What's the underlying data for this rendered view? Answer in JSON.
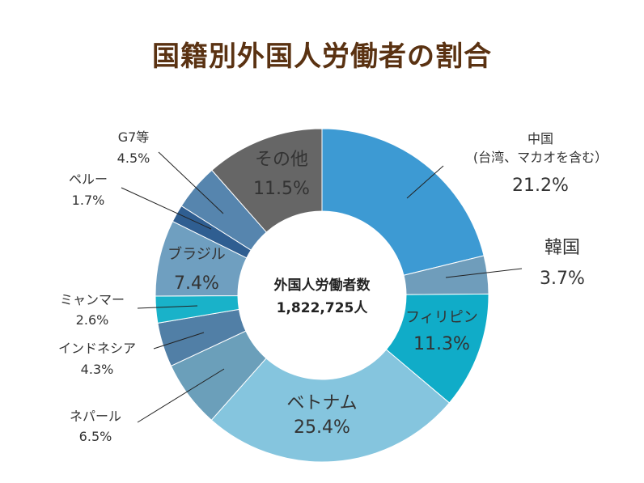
{
  "chart_data": {
    "type": "pie",
    "title": "国籍別外国人労働者の割合",
    "center_label": "外国人労働者数",
    "center_value": "1,822,725人",
    "slices": [
      {
        "name": "中国\n(台湾、マカオを含む）",
        "value": 21.2,
        "value_label": "21.2%",
        "color": "#3d9ad3"
      },
      {
        "name": "韓国",
        "value": 3.7,
        "value_label": "3.7%",
        "color": "#6f9dbb"
      },
      {
        "name": "フィリピン",
        "value": 11.3,
        "value_label": "11.3%",
        "color": "#10acc8"
      },
      {
        "name": "ベトナム",
        "value": 25.4,
        "value_label": "25.4%",
        "color": "#85c5de"
      },
      {
        "name": "ネパール",
        "value": 6.5,
        "value_label": "6.5%",
        "color": "#6b9fba"
      },
      {
        "name": "インドネシア",
        "value": 4.3,
        "value_label": "4.3%",
        "color": "#517fa6"
      },
      {
        "name": "ミャンマー",
        "value": 2.6,
        "value_label": "2.6%",
        "color": "#19b2c9"
      },
      {
        "name": "ブラジル",
        "value": 7.4,
        "value_label": "7.4%",
        "color": "#6f9fc0"
      },
      {
        "name": "ペルー",
        "value": 1.7,
        "value_label": "1.7%",
        "color": "#2f5e91"
      },
      {
        "name": "G7等",
        "value": 4.5,
        "value_label": "4.5%",
        "color": "#5685ae"
      },
      {
        "name": "その他",
        "value": 11.5,
        "value_label": "11.5%",
        "color": "#666666"
      }
    ]
  }
}
